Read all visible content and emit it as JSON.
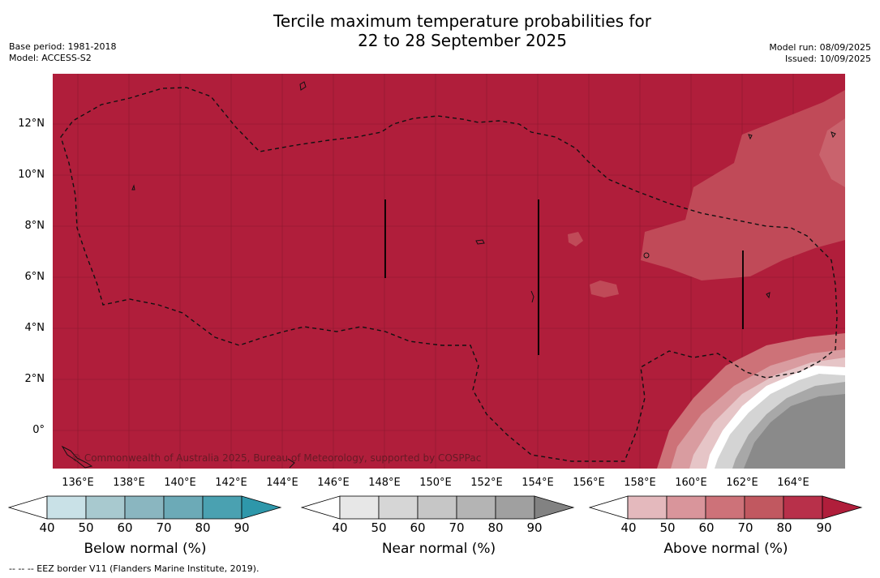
{
  "title": {
    "line1": "Tercile maximum temperature probabilities for",
    "line2": "22 to 28 September 2025"
  },
  "meta": {
    "base_period": "Base period: 1981-2018",
    "model": "Model: ACCESS-S2",
    "model_run": "Model run: 08/09/2025",
    "issued": "Issued: 10/09/2025"
  },
  "map": {
    "copyright": "© Commonwealth of Australia 2025, Bureau of Meteorology, supported by COSPPac",
    "lat_ticks": [
      "12°N",
      "10°N",
      "8°N",
      "6°N",
      "4°N",
      "2°N",
      "0°"
    ],
    "lon_ticks": [
      "136°E",
      "138°E",
      "140°E",
      "142°E",
      "144°E",
      "146°E",
      "148°E",
      "150°E",
      "152°E",
      "154°E",
      "156°E",
      "158°E",
      "160°E",
      "162°E",
      "164°E"
    ],
    "dominant_category": "Above normal",
    "colors": {
      "background_above_90": "#b01e3b",
      "above_80_90": "#b8324a",
      "above_70_80": "#c4525f",
      "above_60_70": "#cf7b80",
      "above_50_60": "#d99ba0",
      "above_40_50": "#e4c2c4",
      "near_high": "#8a8a8a",
      "near_mid": "#a8a8a8",
      "near_low": "#d4d4d4",
      "eez_line": "#111111"
    }
  },
  "legends": [
    {
      "label": "Below normal (%)",
      "ticks": [
        "40",
        "50",
        "60",
        "70",
        "80",
        "90"
      ],
      "colors": [
        "#ffffff",
        "#c9e1e7",
        "#a8c9cf",
        "#8ab6c0",
        "#6caab7",
        "#4aa1b1",
        "#2e97aa"
      ]
    },
    {
      "label": "Near normal (%)",
      "ticks": [
        "40",
        "50",
        "60",
        "70",
        "80",
        "90"
      ],
      "colors": [
        "#ffffff",
        "#e7e7e7",
        "#d6d6d6",
        "#c6c6c6",
        "#b4b4b4",
        "#a0a0a0",
        "#828282"
      ]
    },
    {
      "label": "Above normal (%)",
      "ticks": [
        "40",
        "50",
        "60",
        "70",
        "80",
        "90"
      ],
      "colors": [
        "#ffffff",
        "#e4b9bd",
        "#d9959b",
        "#cd7279",
        "#c15860",
        "#b8304a",
        "#b01e3b"
      ]
    }
  ],
  "footnote": "--  --  -- EEZ border V11 (Flanders Marine Institute, 2019)."
}
